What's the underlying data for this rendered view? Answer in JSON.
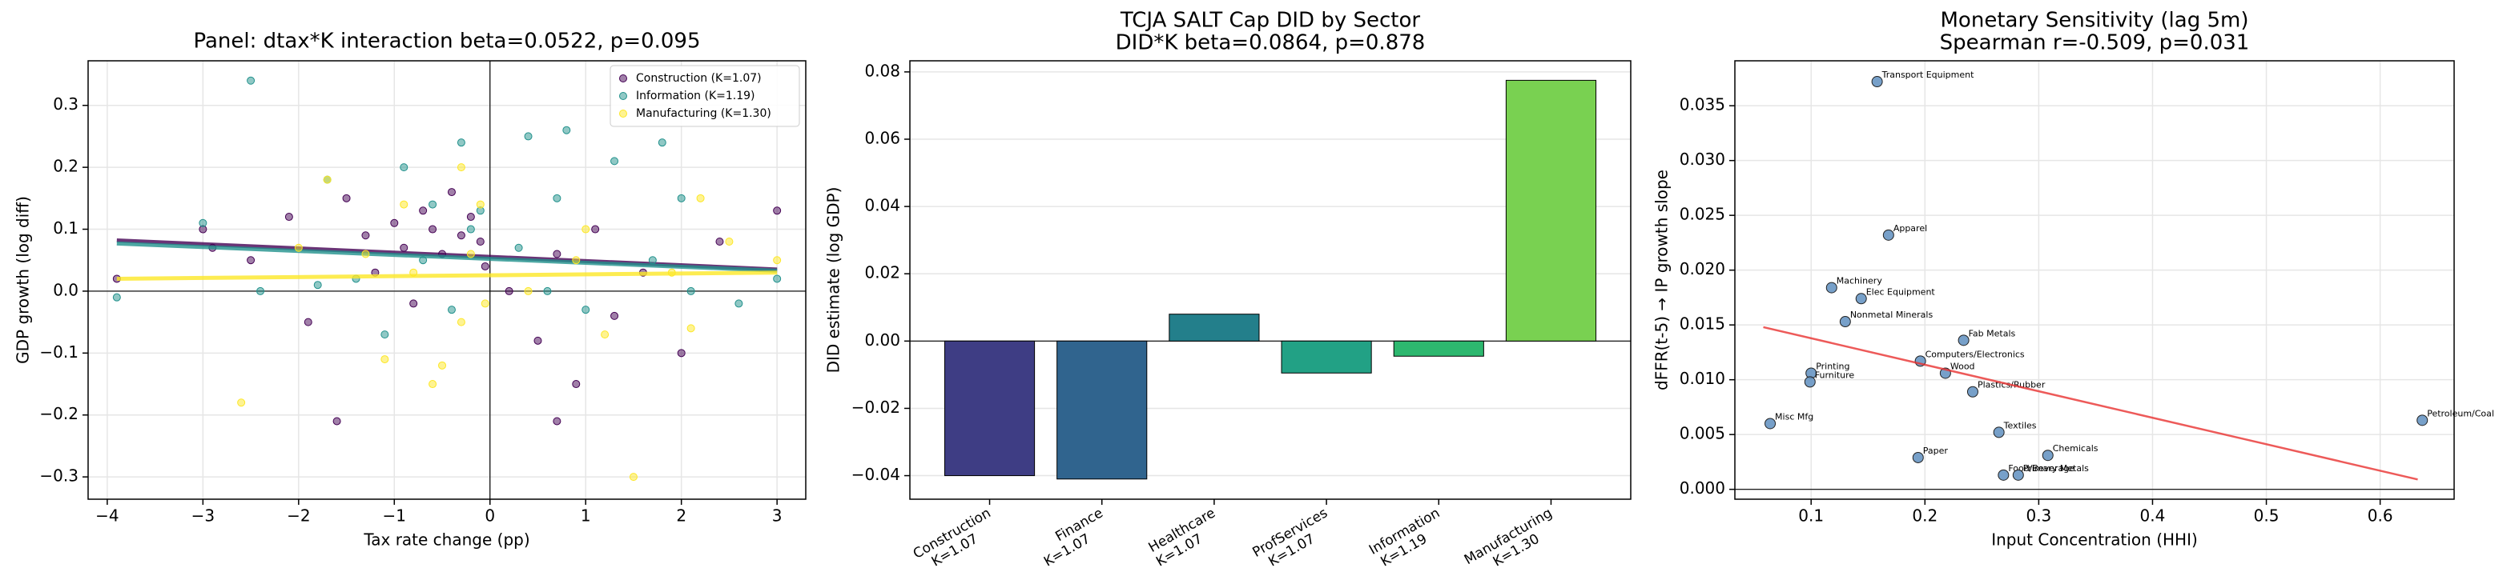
{
  "chart_data": [
    {
      "type": "scatter",
      "title": "Panel: dtax*K interaction beta=0.0522, p=0.095",
      "x_label": "Tax rate change (pp)",
      "y_label": "GDP growth (log diff)",
      "xlim": [
        -4.2,
        3.3
      ],
      "ylim": [
        -0.336,
        0.372
      ],
      "xticks": [
        {
          "value": -4,
          "label": "−4"
        },
        {
          "value": -3,
          "label": "−3"
        },
        {
          "value": -2,
          "label": "−2"
        },
        {
          "value": -1,
          "label": "−1"
        },
        0,
        1,
        2,
        3
      ],
      "yticks": [
        {
          "value": -0.3,
          "label": "−0.3"
        },
        {
          "value": -0.2,
          "label": "−0.2"
        },
        {
          "value": -0.1,
          "label": "−0.1"
        },
        {
          "value": 0,
          "label": "0.0"
        },
        0.1,
        0.2,
        0.3
      ],
      "grid": "both",
      "legend": "upper right",
      "hline": 0,
      "vline": 0,
      "series": [
        {
          "name": "Construction (K=1.07)",
          "color": "#440154",
          "x": [
            -3.9,
            -3.0,
            -2.9,
            -2.5,
            -2.1,
            -1.9,
            -1.6,
            -1.5,
            -1.3,
            -1.2,
            -1.0,
            -0.9,
            -0.8,
            -0.7,
            -0.6,
            -0.5,
            -0.4,
            -0.3,
            -0.2,
            -0.1,
            -0.05,
            0.2,
            0.5,
            0.7,
            0.9,
            1.1,
            1.3,
            1.6,
            2.0,
            2.4,
            3.0,
            0.7
          ],
          "y": [
            0.02,
            0.1,
            0.07,
            0.05,
            0.12,
            -0.05,
            -0.21,
            0.15,
            0.09,
            0.03,
            0.11,
            0.07,
            -0.02,
            0.13,
            0.1,
            0.06,
            0.16,
            0.09,
            0.12,
            0.08,
            0.04,
            0.0,
            -0.08,
            0.06,
            -0.15,
            0.1,
            -0.04,
            0.03,
            -0.1,
            0.08,
            0.13,
            -0.21
          ],
          "fit_x": [
            -3.9,
            3.0
          ],
          "fit_y": [
            0.082,
            0.035
          ]
        },
        {
          "name": "Information (K=1.19)",
          "color": "#21918c",
          "x": [
            -3.9,
            -3.0,
            -2.5,
            -2.4,
            -1.7,
            -1.4,
            -1.1,
            -0.9,
            -0.7,
            -0.6,
            -0.4,
            -0.3,
            -0.2,
            -0.1,
            0.3,
            0.6,
            0.7,
            0.8,
            1.0,
            1.3,
            1.7,
            1.8,
            2.0,
            2.1,
            2.6,
            3.0,
            -1.8,
            0.4
          ],
          "y": [
            -0.01,
            0.11,
            0.34,
            0.0,
            0.18,
            0.02,
            -0.07,
            0.2,
            0.05,
            0.14,
            -0.03,
            0.24,
            0.1,
            0.13,
            0.07,
            0.0,
            0.15,
            0.26,
            -0.03,
            0.21,
            0.05,
            0.24,
            0.15,
            0.0,
            -0.02,
            0.02,
            0.01,
            0.25
          ],
          "fit_x": [
            -3.9,
            3.0
          ],
          "fit_y": [
            0.077,
            0.033
          ]
        },
        {
          "name": "Manufacturing (K=1.30)",
          "color": "#fde725",
          "x": [
            -2.6,
            -2.0,
            -1.7,
            -1.3,
            -1.1,
            -0.9,
            -0.8,
            -0.6,
            -0.5,
            -0.3,
            -0.2,
            -0.1,
            -0.05,
            0.4,
            0.9,
            1.2,
            1.5,
            1.9,
            2.1,
            2.2,
            2.5,
            3.0,
            1.0,
            -0.3
          ],
          "y": [
            -0.18,
            0.07,
            0.18,
            0.06,
            -0.11,
            0.14,
            0.03,
            -0.15,
            -0.12,
            0.2,
            0.06,
            0.14,
            -0.02,
            0.0,
            0.05,
            -0.07,
            -0.3,
            0.03,
            -0.06,
            0.15,
            0.08,
            0.05,
            0.1,
            -0.05
          ],
          "fit_x": [
            -3.9,
            3.0
          ],
          "fit_y": [
            0.02,
            0.03
          ]
        }
      ]
    },
    {
      "type": "bar",
      "title": "TCJA SALT Cap DID by Sector",
      "subtitle": "DID*K beta=0.0864, p=0.878",
      "y_label": "DID estimate (log GDP)",
      "categories": [
        "Construction\nK=1.07",
        "Finance\nK=1.07",
        "Healthcare\nK=1.07",
        "ProfServices\nK=1.07",
        "Information\nK=1.19",
        "Manufacturing\nK=1.30"
      ],
      "values": [
        -0.04,
        -0.041,
        0.008,
        -0.0095,
        -0.0045,
        0.0775
      ],
      "colors": [
        "#3e3d84",
        "#30648e",
        "#237f8b",
        "#22a185",
        "#2db86f",
        "#79d151"
      ],
      "ylim": [
        -0.047,
        0.0833
      ],
      "yticks": [
        {
          "value": -0.04,
          "label": "−0.04"
        },
        {
          "value": -0.02,
          "label": "−0.02"
        },
        {
          "value": 0,
          "label": "0.00"
        },
        0.02,
        0.04,
        0.06,
        0.08
      ],
      "grid": "y",
      "hline": 0
    },
    {
      "type": "scatter",
      "title": "Monetary Sensitivity (lag 5m)",
      "subtitle": "Spearman r=-0.509, p=0.031",
      "x_label": "Input Concentration (HHI)",
      "y_label": "dFFR(t-5) → IP growth slope",
      "xlim": [
        0.033,
        0.665
      ],
      "ylim": [
        -0.0009,
        0.0391
      ],
      "xticks": [
        0.1,
        0.2,
        0.3,
        0.4,
        0.5,
        0.6
      ],
      "yticks": [
        {
          "value": 0,
          "label": "0.000"
        },
        0.005,
        {
          "value": 0.01,
          "label": "0.010"
        },
        0.015,
        {
          "value": 0.02,
          "label": "0.020"
        },
        0.025,
        {
          "value": 0.03,
          "label": "0.030"
        },
        0.035
      ],
      "grid": "both",
      "hline": 0,
      "series": [
        {
          "color": "#5f8fbf",
          "labels": [
            "Transport Equipment",
            "Apparel",
            "Machinery",
            "Elec Equipment",
            "Nonmetal Minerals",
            "Fab Metals",
            "Computers/Electronics",
            "Wood",
            "Printing",
            "Furniture",
            "Plastics/Rubber",
            "Misc Mfg",
            "Petroleum/Coal",
            "Textiles",
            "Chemicals",
            "Paper",
            "Food/Beverage",
            "Primary Metals"
          ],
          "x": [
            0.158,
            0.168,
            0.118,
            0.144,
            0.13,
            0.234,
            0.196,
            0.218,
            0.1,
            0.099,
            0.242,
            0.064,
            0.637,
            0.265,
            0.308,
            0.194,
            0.269,
            0.282
          ],
          "y": [
            0.0372,
            0.0232,
            0.0184,
            0.0174,
            0.0153,
            0.0136,
            0.0117,
            0.0106,
            0.0106,
            0.0098,
            0.0089,
            0.006,
            0.0063,
            0.0052,
            0.0031,
            0.0029,
            0.0013,
            0.0013
          ],
          "fit_x": [
            0.058,
            0.633
          ],
          "fit_y": [
            0.0148,
            0.0009
          ],
          "fit_color": "#e8312f"
        }
      ]
    }
  ]
}
